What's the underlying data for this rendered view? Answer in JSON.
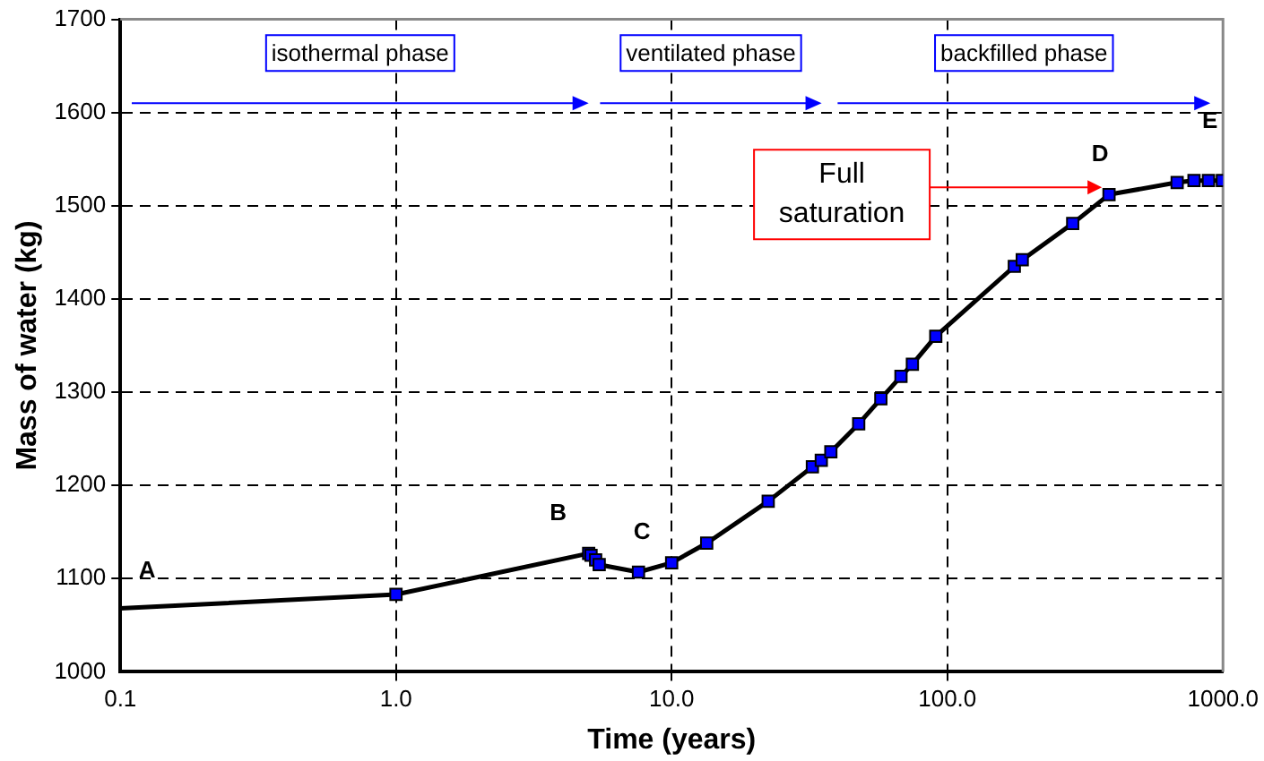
{
  "chart_data": {
    "type": "line",
    "xlabel": "Time (years)",
    "ylabel": "Mass of water (kg)",
    "log": "x",
    "grid": true,
    "legend": false,
    "marker": "square",
    "line_style": "solid",
    "xlim": [
      0.1,
      1000
    ],
    "xticks": [
      {
        "value": 0.1,
        "label": "0.1"
      },
      {
        "value": 1,
        "label": "1.0"
      },
      {
        "value": 10,
        "label": "10.0"
      },
      {
        "value": 100,
        "label": "100.0"
      },
      {
        "value": 1000,
        "label": "1000.0"
      }
    ],
    "ylim": [
      1000,
      1700
    ],
    "yticks": [
      1000,
      1100,
      1200,
      1300,
      1400,
      1500,
      1600,
      1700
    ],
    "series": [
      {
        "color": "#000000",
        "x": [
          0.1,
          1.0,
          5.0,
          5.1,
          5.3,
          5.46,
          7.58,
          10.0,
          13.4,
          22.4,
          32.4,
          34.9,
          37.8,
          47.7,
          57.4,
          67.9,
          74.7,
          90.8,
          175,
          187,
          285,
          386,
          682,
          785,
          886,
          995
        ],
        "values": [
          1068,
          1083,
          1127,
          1125,
          1120,
          1115,
          1107,
          1117,
          1138,
          1183,
          1220,
          1227,
          1236,
          1266,
          1293,
          1317,
          1330,
          1360,
          1435,
          1442,
          1481,
          1512,
          1525,
          1527,
          1527,
          1527
        ],
        "colors": [
          null,
          "#0000ff",
          "#0000ff",
          "#0000ff",
          "#0000ff",
          "#0000ff",
          "#0000ff",
          "#0000ff",
          "#0000ff",
          "#0000ff",
          "#0000ff",
          "#0000ff",
          "#0000ff",
          "#0000ff",
          "#0000ff",
          "#0000ff",
          "#0000ff",
          "#0000ff",
          "#0000ff",
          "#0000ff",
          "#0000ff",
          "#0000ff",
          "#0000ff",
          "#0000ff",
          "#0000ff",
          "#0000ff"
        ]
      }
    ],
    "annotations": [
      {
        "text": "A",
        "x": 0.1,
        "y": 1068
      },
      {
        "text": "B",
        "x": 5.0,
        "y": 1127
      },
      {
        "text": "C",
        "x": 7.58,
        "y": 1107
      },
      {
        "text": "D",
        "x": 386,
        "y": 1512
      },
      {
        "text": "E",
        "x": 995,
        "y": 1527
      },
      {
        "text": "Full saturation",
        "x": 386,
        "y": 1512
      },
      "isothermal phase",
      "ventilated phase",
      "backfilled phase"
    ]
  }
}
